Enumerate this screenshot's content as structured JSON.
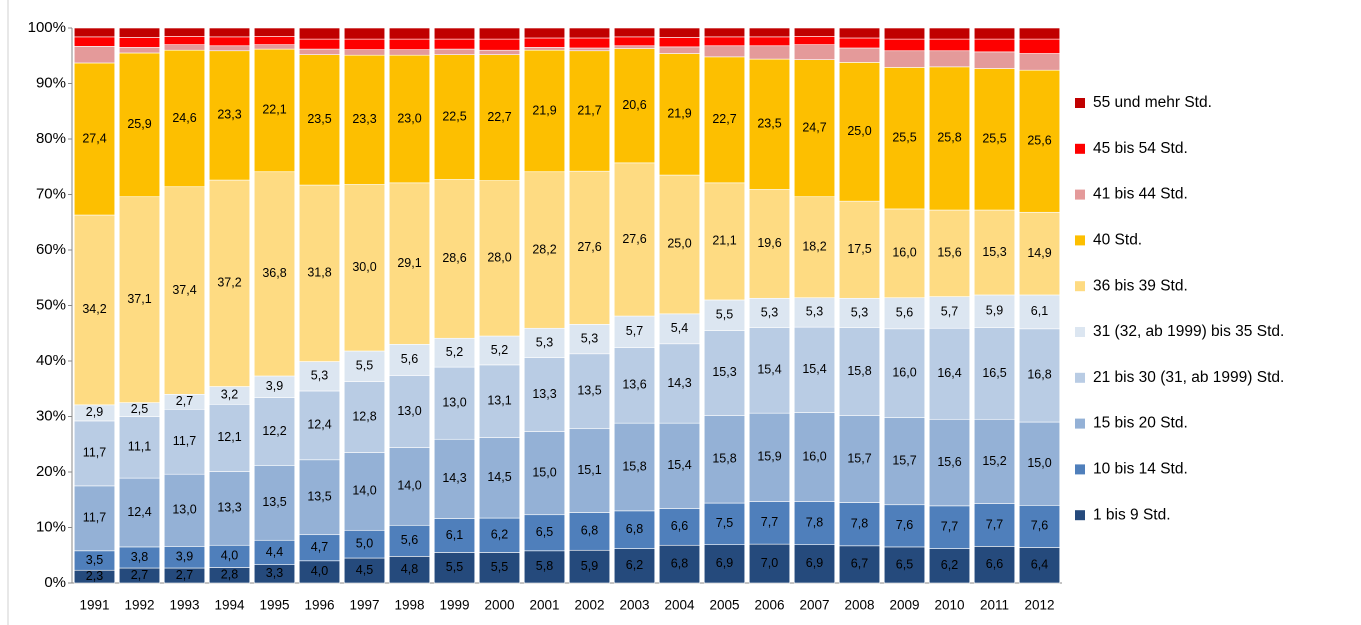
{
  "chart_data": {
    "type": "stacked_bar_100",
    "categories": [
      "1991",
      "1992",
      "1993",
      "1994",
      "1995",
      "1996",
      "1997",
      "1998",
      "1999",
      "2000",
      "2001",
      "2002",
      "2003",
      "2004",
      "2005",
      "2006",
      "2007",
      "2008",
      "2009",
      "2010",
      "2011",
      "2012"
    ],
    "ylim": [
      0,
      100
    ],
    "yticks": [
      {
        "value": 0,
        "label": "0%"
      },
      {
        "value": 10,
        "label": "10%"
      },
      {
        "value": 20,
        "label": "20%"
      },
      {
        "value": 30,
        "label": "30%"
      },
      {
        "value": 40,
        "label": "40%"
      },
      {
        "value": 50,
        "label": "50%"
      },
      {
        "value": 60,
        "label": "60%"
      },
      {
        "value": 70,
        "label": "70%"
      },
      {
        "value": 80,
        "label": "80%"
      },
      {
        "value": 90,
        "label": "90%"
      },
      {
        "value": 100,
        "label": "100%"
      }
    ],
    "legend": "right",
    "series": [
      {
        "name": "1 bis 9 Std.",
        "color": "#254a7c",
        "label_color": "#ffffff",
        "values": [
          2.3,
          2.7,
          2.7,
          2.8,
          3.3,
          4.0,
          4.5,
          4.8,
          5.5,
          5.5,
          5.8,
          5.9,
          6.2,
          6.8,
          6.9,
          7.0,
          6.9,
          6.7,
          6.5,
          6.2,
          6.6,
          6.4
        ],
        "value_labels": [
          "2,3",
          "2,7",
          "2,7",
          "2,8",
          "3,3",
          "4,0",
          "4,5",
          "4,8",
          "5,5",
          "5,5",
          "5,8",
          "5,9",
          "6,2",
          "6,8",
          "6,9",
          "7,0",
          "6,9",
          "6,7",
          "6,5",
          "6,2",
          "6,6",
          "6,4"
        ]
      },
      {
        "name": "10 bis 14 Std.",
        "color": "#4f7fbb",
        "label_color": "#ffffff",
        "values": [
          3.5,
          3.8,
          3.9,
          4.0,
          4.4,
          4.7,
          5.0,
          5.6,
          6.1,
          6.2,
          6.5,
          6.8,
          6.8,
          6.6,
          7.5,
          7.7,
          7.8,
          7.8,
          7.6,
          7.7,
          7.7,
          7.6
        ],
        "value_labels": [
          "3,5",
          "3,8",
          "3,9",
          "4,0",
          "4,4",
          "4,7",
          "5,0",
          "5,6",
          "6,1",
          "6,2",
          "6,5",
          "6,8",
          "6,8",
          "6,6",
          "7,5",
          "7,7",
          "7,8",
          "7,8",
          "7,6",
          "7,7",
          "7,7",
          "7,6"
        ]
      },
      {
        "name": "15 bis 20 Std.",
        "color": "#94b1d6",
        "label_color": "#000000",
        "values": [
          11.7,
          12.4,
          13.0,
          13.3,
          13.5,
          13.5,
          14.0,
          14.0,
          14.3,
          14.5,
          15.0,
          15.1,
          15.8,
          15.4,
          15.8,
          15.9,
          16.0,
          15.7,
          15.7,
          15.6,
          15.2,
          15.0
        ],
        "value_labels": [
          "11,7",
          "12,4",
          "13,0",
          "13,3",
          "13,5",
          "13,5",
          "14,0",
          "14,0",
          "14,3",
          "14,5",
          "15,0",
          "15,1",
          "15,8",
          "15,4",
          "15,8",
          "15,9",
          "16,0",
          "15,7",
          "15,7",
          "15,6",
          "15,2",
          "15,0"
        ]
      },
      {
        "name": "21 bis 30 (31, ab 1999) Std.",
        "color": "#b9cce4",
        "label_color": "#000000",
        "values": [
          11.7,
          11.1,
          11.7,
          12.1,
          12.2,
          12.4,
          12.8,
          13.0,
          13.0,
          13.1,
          13.3,
          13.5,
          13.6,
          14.3,
          15.3,
          15.4,
          15.4,
          15.8,
          16.0,
          16.4,
          16.5,
          16.8
        ],
        "value_labels": [
          "11,7",
          "11,1",
          "11,7",
          "12,1",
          "12,2",
          "12,4",
          "12,8",
          "13,0",
          "13,0",
          "13,1",
          "13,3",
          "13,5",
          "13,6",
          "14,3",
          "15,3",
          "15,4",
          "15,4",
          "15,8",
          "16,0",
          "16,4",
          "16,5",
          "16,8"
        ]
      },
      {
        "name": "31 (32, ab 1999) bis 35 Std.",
        "color": "#dce6f1",
        "label_color": "#000000",
        "values": [
          2.9,
          2.5,
          2.7,
          3.2,
          3.9,
          5.3,
          5.5,
          5.6,
          5.2,
          5.2,
          5.3,
          5.3,
          5.7,
          5.4,
          5.5,
          5.3,
          5.3,
          5.3,
          5.6,
          5.7,
          5.9,
          6.1
        ],
        "value_labels": [
          "2,9",
          "2,5",
          "2,7",
          "3,2",
          "3,9",
          "5,3",
          "5,5",
          "5,6",
          "5,2",
          "5,2",
          "5,3",
          "5,3",
          "5,7",
          "5,4",
          "5,5",
          "5,3",
          "5,3",
          "5,3",
          "5,6",
          "5,7",
          "5,9",
          "6,1"
        ]
      },
      {
        "name": "36 bis 39 Std.",
        "color": "#fedb82",
        "label_color": "#000000",
        "values": [
          34.2,
          37.1,
          37.4,
          37.2,
          36.8,
          31.8,
          30.0,
          29.1,
          28.6,
          28.0,
          28.2,
          27.6,
          27.6,
          25.0,
          21.1,
          19.6,
          18.2,
          17.5,
          16.0,
          15.6,
          15.3,
          14.9
        ],
        "value_labels": [
          "34,2",
          "37,1",
          "37,4",
          "37,2",
          "36,8",
          "31,8",
          "30,0",
          "29,1",
          "28,6",
          "28,0",
          "28,2",
          "27,6",
          "27,6",
          "25,0",
          "21,1",
          "19,6",
          "18,2",
          "17,5",
          "16,0",
          "15,6",
          "15,3",
          "14,9"
        ]
      },
      {
        "name": "40 Std.",
        "color": "#fdbf00",
        "label_color": "#000000",
        "values": [
          27.4,
          25.9,
          24.6,
          23.3,
          22.1,
          23.5,
          23.3,
          23.0,
          22.5,
          22.7,
          21.9,
          21.7,
          20.6,
          21.9,
          22.7,
          23.5,
          24.7,
          25.0,
          25.5,
          25.8,
          25.5,
          25.6
        ],
        "value_labels": [
          "27,4",
          "25,9",
          "24,6",
          "23,3",
          "22,1",
          "23,5",
          "23,3",
          "23,0",
          "22,5",
          "22,7",
          "21,9",
          "21,7",
          "20,6",
          "21,9",
          "22,7",
          "23,5",
          "24,7",
          "25,0",
          "25,5",
          "25,8",
          "25,5",
          "25,6"
        ]
      },
      {
        "name": "41 bis 44 Std.",
        "color": "#e49a9a",
        "values": [
          3.0,
          1.0,
          1.0,
          0.9,
          0.8,
          1.0,
          1.0,
          1.0,
          1.0,
          0.8,
          0.5,
          0.5,
          0.5,
          1.2,
          2.0,
          2.4,
          2.7,
          2.6,
          3.0,
          2.9,
          3.0,
          3.0
        ]
      },
      {
        "name": "45 bis 54 Std.",
        "color": "#fe0000",
        "values": [
          1.7,
          1.8,
          1.5,
          1.6,
          1.5,
          1.8,
          1.9,
          1.9,
          1.8,
          2.0,
          1.7,
          1.8,
          1.6,
          1.7,
          1.6,
          1.6,
          1.5,
          1.8,
          2.1,
          2.1,
          2.3,
          2.6
        ]
      },
      {
        "name": "55 und mehr Std.",
        "color": "#c00000",
        "values": [
          1.6,
          1.7,
          1.5,
          1.6,
          1.5,
          2.0,
          2.0,
          2.0,
          2.0,
          2.0,
          1.8,
          1.8,
          1.6,
          1.7,
          1.6,
          1.6,
          1.5,
          1.8,
          2.0,
          2.0,
          2.0,
          2.0
        ]
      }
    ]
  }
}
